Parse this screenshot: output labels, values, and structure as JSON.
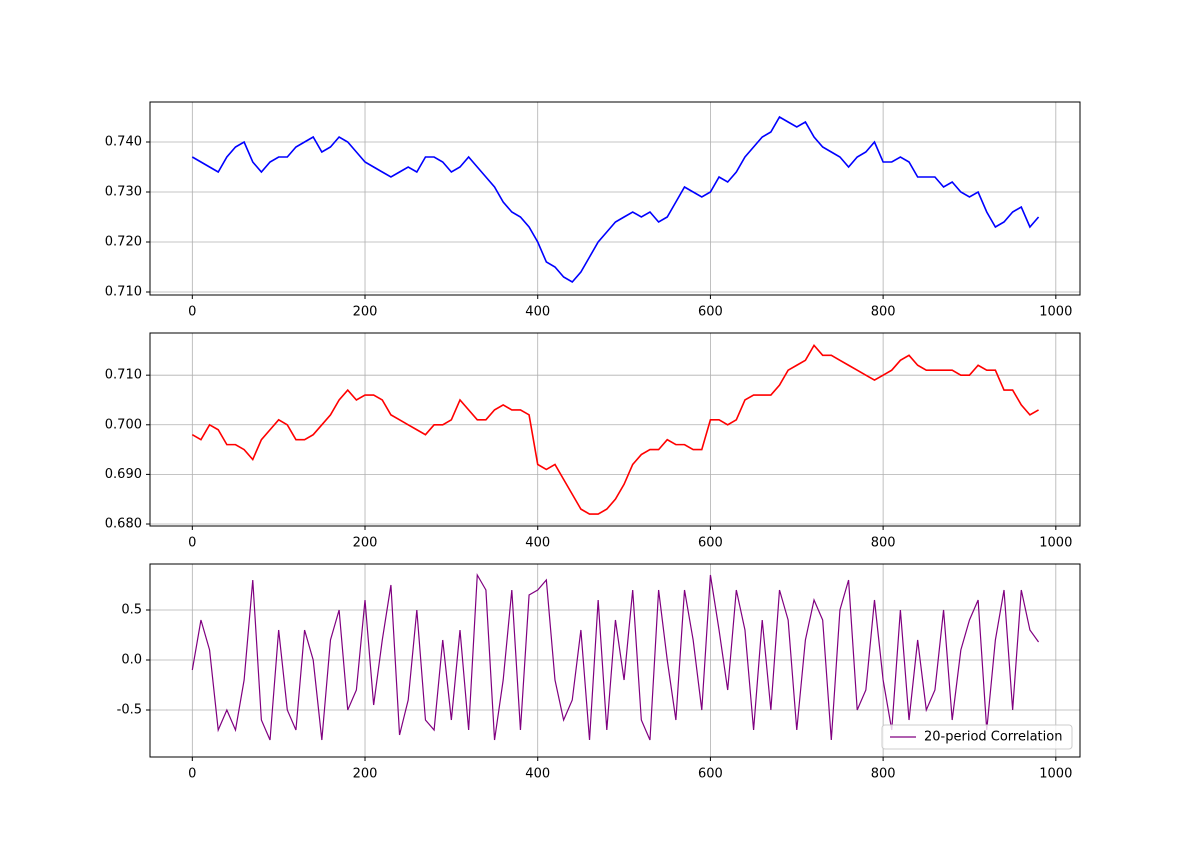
{
  "chart_data": [
    {
      "type": "line",
      "color": "#0000ff",
      "grid": true,
      "xlim": [
        -49,
        1028
      ],
      "xticks": [
        0,
        200,
        400,
        600,
        800,
        1000
      ],
      "ylim": [
        0.7094,
        0.748
      ],
      "yticks": [
        {
          "value": 0.71,
          "label": "0.710"
        },
        {
          "value": 0.72,
          "label": "0.720"
        },
        {
          "value": 0.73,
          "label": "0.730"
        },
        {
          "value": 0.74,
          "label": "0.740"
        }
      ],
      "x": [
        0,
        10,
        20,
        30,
        40,
        50,
        60,
        70,
        80,
        90,
        100,
        110,
        120,
        130,
        140,
        150,
        160,
        170,
        180,
        190,
        200,
        210,
        220,
        230,
        240,
        250,
        260,
        270,
        280,
        290,
        300,
        310,
        320,
        330,
        340,
        350,
        360,
        370,
        380,
        390,
        400,
        410,
        420,
        430,
        440,
        450,
        460,
        470,
        480,
        490,
        500,
        510,
        520,
        530,
        540,
        550,
        560,
        570,
        580,
        590,
        600,
        610,
        620,
        630,
        640,
        650,
        660,
        670,
        680,
        690,
        700,
        710,
        720,
        730,
        740,
        750,
        760,
        770,
        780,
        790,
        800,
        810,
        820,
        830,
        840,
        850,
        860,
        870,
        880,
        890,
        900,
        910,
        920,
        930,
        940,
        950,
        960,
        970,
        980
      ],
      "values": [
        0.737,
        0.736,
        0.735,
        0.734,
        0.737,
        0.739,
        0.74,
        0.736,
        0.734,
        0.736,
        0.737,
        0.737,
        0.739,
        0.74,
        0.741,
        0.738,
        0.739,
        0.741,
        0.74,
        0.738,
        0.736,
        0.735,
        0.734,
        0.733,
        0.734,
        0.735,
        0.734,
        0.737,
        0.737,
        0.736,
        0.734,
        0.735,
        0.737,
        0.735,
        0.733,
        0.731,
        0.728,
        0.726,
        0.725,
        0.723,
        0.72,
        0.716,
        0.715,
        0.713,
        0.712,
        0.714,
        0.717,
        0.72,
        0.722,
        0.724,
        0.725,
        0.726,
        0.725,
        0.726,
        0.724,
        0.725,
        0.728,
        0.731,
        0.73,
        0.729,
        0.73,
        0.733,
        0.732,
        0.734,
        0.737,
        0.739,
        0.741,
        0.742,
        0.745,
        0.744,
        0.743,
        0.744,
        0.741,
        0.739,
        0.738,
        0.737,
        0.735,
        0.737,
        0.738,
        0.74,
        0.736,
        0.736,
        0.737,
        0.736,
        0.733,
        0.733,
        0.733,
        0.731,
        0.732,
        0.73,
        0.729,
        0.73,
        0.726,
        0.723,
        0.724,
        0.726,
        0.727,
        0.723,
        0.725
      ]
    },
    {
      "type": "line",
      "color": "#ff0000",
      "grid": true,
      "xlim": [
        -49,
        1028
      ],
      "xticks": [
        0,
        200,
        400,
        600,
        800,
        1000
      ],
      "ylim": [
        0.6796,
        0.7185
      ],
      "yticks": [
        {
          "value": 0.68,
          "label": "0.680"
        },
        {
          "value": 0.69,
          "label": "0.690"
        },
        {
          "value": 0.7,
          "label": "0.700"
        },
        {
          "value": 0.71,
          "label": "0.710"
        }
      ],
      "x": [
        0,
        10,
        20,
        30,
        40,
        50,
        60,
        70,
        80,
        90,
        100,
        110,
        120,
        130,
        140,
        150,
        160,
        170,
        180,
        190,
        200,
        210,
        220,
        230,
        240,
        250,
        260,
        270,
        280,
        290,
        300,
        310,
        320,
        330,
        340,
        350,
        360,
        370,
        380,
        390,
        400,
        410,
        420,
        430,
        440,
        450,
        460,
        470,
        480,
        490,
        500,
        510,
        520,
        530,
        540,
        550,
        560,
        570,
        580,
        590,
        600,
        610,
        620,
        630,
        640,
        650,
        660,
        670,
        680,
        690,
        700,
        710,
        720,
        730,
        740,
        750,
        760,
        770,
        780,
        790,
        800,
        810,
        820,
        830,
        840,
        850,
        860,
        870,
        880,
        890,
        900,
        910,
        920,
        930,
        940,
        950,
        960,
        970,
        980
      ],
      "values": [
        0.698,
        0.697,
        0.7,
        0.699,
        0.696,
        0.696,
        0.695,
        0.693,
        0.697,
        0.699,
        0.701,
        0.7,
        0.697,
        0.697,
        0.698,
        0.7,
        0.702,
        0.705,
        0.707,
        0.705,
        0.706,
        0.706,
        0.705,
        0.702,
        0.701,
        0.7,
        0.699,
        0.698,
        0.7,
        0.7,
        0.701,
        0.705,
        0.703,
        0.701,
        0.701,
        0.703,
        0.704,
        0.703,
        0.703,
        0.702,
        0.692,
        0.691,
        0.692,
        0.689,
        0.686,
        0.683,
        0.682,
        0.682,
        0.683,
        0.685,
        0.688,
        0.692,
        0.694,
        0.695,
        0.695,
        0.697,
        0.696,
        0.696,
        0.695,
        0.695,
        0.701,
        0.701,
        0.7,
        0.701,
        0.705,
        0.706,
        0.706,
        0.706,
        0.708,
        0.711,
        0.712,
        0.713,
        0.716,
        0.714,
        0.714,
        0.713,
        0.712,
        0.711,
        0.71,
        0.709,
        0.71,
        0.711,
        0.713,
        0.714,
        0.712,
        0.711,
        0.711,
        0.711,
        0.711,
        0.71,
        0.71,
        0.712,
        0.711,
        0.711,
        0.707,
        0.707,
        0.704,
        0.702,
        0.703
      ]
    },
    {
      "type": "line",
      "grid": true,
      "legend": "lower right",
      "xlim": [
        -49,
        1028
      ],
      "xticks": [
        0,
        200,
        400,
        600,
        800,
        1000
      ],
      "ylim": [
        -0.97,
        0.96
      ],
      "yticks": [
        -0.5,
        {
          "value": 0,
          "label": "0.0"
        },
        0.5
      ],
      "x": [
        0,
        10,
        20,
        30,
        40,
        50,
        60,
        70,
        80,
        90,
        100,
        110,
        120,
        130,
        140,
        150,
        160,
        170,
        180,
        190,
        200,
        210,
        220,
        230,
        240,
        250,
        260,
        270,
        280,
        290,
        300,
        310,
        320,
        330,
        340,
        350,
        360,
        370,
        380,
        390,
        400,
        410,
        420,
        430,
        440,
        450,
        460,
        470,
        480,
        490,
        500,
        510,
        520,
        530,
        540,
        550,
        560,
        570,
        580,
        590,
        600,
        610,
        620,
        630,
        640,
        650,
        660,
        670,
        680,
        690,
        700,
        710,
        720,
        730,
        740,
        750,
        760,
        770,
        780,
        790,
        800,
        810,
        820,
        830,
        840,
        850,
        860,
        870,
        880,
        890,
        900,
        910,
        920,
        930,
        940,
        950,
        960,
        970,
        980
      ],
      "series": [
        {
          "name": "20-period Correlation",
          "color": "#800080",
          "values": [
            -0.1,
            0.4,
            0.1,
            -0.7,
            -0.5,
            -0.7,
            -0.2,
            0.8,
            -0.6,
            -0.8,
            0.3,
            -0.5,
            -0.7,
            0.3,
            0.0,
            -0.8,
            0.2,
            0.5,
            -0.5,
            -0.3,
            0.6,
            -0.45,
            0.2,
            0.75,
            -0.75,
            -0.4,
            0.5,
            -0.6,
            -0.7,
            0.2,
            -0.6,
            0.3,
            -0.7,
            0.85,
            0.7,
            -0.8,
            -0.2,
            0.7,
            -0.7,
            0.65,
            0.7,
            0.8,
            -0.2,
            -0.6,
            -0.4,
            0.3,
            -0.8,
            0.6,
            -0.7,
            0.4,
            -0.2,
            0.7,
            -0.6,
            -0.8,
            0.7,
            0.0,
            -0.6,
            0.7,
            0.2,
            -0.5,
            0.85,
            0.3,
            -0.3,
            0.7,
            0.3,
            -0.7,
            0.4,
            -0.5,
            0.7,
            0.4,
            -0.7,
            0.2,
            0.6,
            0.4,
            -0.8,
            0.5,
            0.8,
            -0.5,
            -0.3,
            0.6,
            -0.2,
            -0.7,
            0.5,
            -0.6,
            0.2,
            -0.5,
            -0.3,
            0.5,
            -0.6,
            0.1,
            0.4,
            0.6,
            -0.7,
            0.2,
            0.7,
            -0.5,
            0.7,
            0.3,
            0.18
          ]
        }
      ]
    }
  ]
}
